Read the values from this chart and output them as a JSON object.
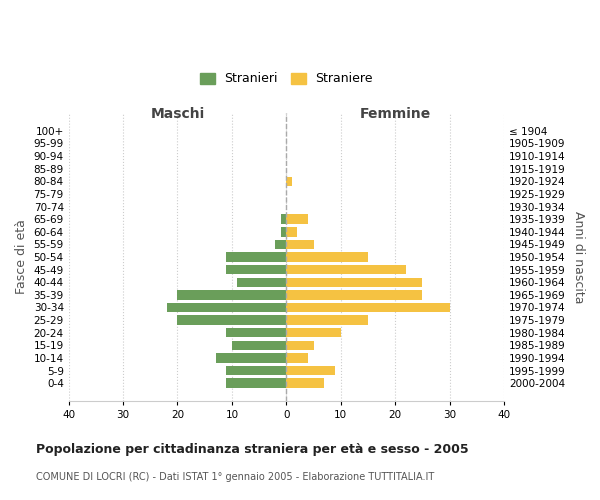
{
  "age_groups": [
    "100+",
    "95-99",
    "90-94",
    "85-89",
    "80-84",
    "75-79",
    "70-74",
    "65-69",
    "60-64",
    "55-59",
    "50-54",
    "45-49",
    "40-44",
    "35-39",
    "30-34",
    "25-29",
    "20-24",
    "15-19",
    "10-14",
    "5-9",
    "0-4"
  ],
  "birth_years": [
    "≤ 1904",
    "1905-1909",
    "1910-1914",
    "1915-1919",
    "1920-1924",
    "1925-1929",
    "1930-1934",
    "1935-1939",
    "1940-1944",
    "1945-1949",
    "1950-1954",
    "1955-1959",
    "1960-1964",
    "1965-1969",
    "1970-1974",
    "1975-1979",
    "1980-1984",
    "1985-1989",
    "1990-1994",
    "1995-1999",
    "2000-2004"
  ],
  "maschi": [
    0,
    0,
    0,
    0,
    0,
    0,
    0,
    1,
    1,
    2,
    11,
    11,
    9,
    20,
    22,
    20,
    11,
    10,
    13,
    11,
    11
  ],
  "femmine": [
    0,
    0,
    0,
    0,
    1,
    0,
    0,
    4,
    2,
    5,
    15,
    22,
    25,
    25,
    30,
    15,
    10,
    5,
    4,
    9,
    7
  ],
  "maschi_color": "#6a9e5a",
  "femmine_color": "#f5c242",
  "title": "Popolazione per cittadinanza straniera per età e sesso - 2005",
  "subtitle": "COMUNE DI LOCRI (RC) - Dati ISTAT 1° gennaio 2005 - Elaborazione TUTTITALIA.IT",
  "xlabel_left": "Maschi",
  "xlabel_right": "Femmine",
  "ylabel_left": "Fasce di età",
  "ylabel_right": "Anni di nascita",
  "xlim": 40,
  "legend_stranieri": "Stranieri",
  "legend_straniere": "Straniere",
  "bg_color": "#ffffff",
  "grid_color": "#cccccc",
  "bar_height": 0.75
}
